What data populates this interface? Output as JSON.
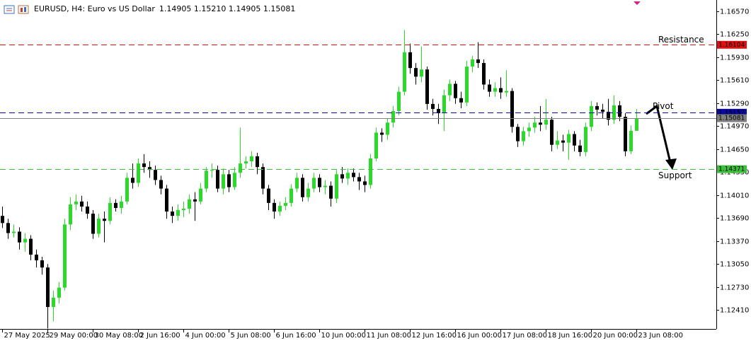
{
  "chart_data": {
    "type": "candlestick",
    "title": "EURUSD, H4: Euro vs US Dollar",
    "quote": "1.14905 1.15210 1.14905 1.15081",
    "categories": [
      "27 May 2025",
      null,
      null,
      null,
      null,
      null,
      null,
      null,
      "29 May 00:00",
      null,
      null,
      null,
      null,
      null,
      null,
      null,
      "30 May 08:00",
      null,
      null,
      null,
      null,
      null,
      null,
      null,
      "2 Jun 16:00",
      null,
      null,
      null,
      null,
      null,
      null,
      null,
      "4 Jun 00:00",
      null,
      null,
      null,
      null,
      null,
      null,
      null,
      "5 Jun 08:00",
      null,
      null,
      null,
      null,
      null,
      null,
      null,
      "6 Jun 16:00",
      null,
      null,
      null,
      null,
      null,
      null,
      null,
      "10 Jun 00:00",
      null,
      null,
      null,
      null,
      null,
      null,
      null,
      "11 Jun 08:00",
      null,
      null,
      null,
      null,
      null,
      null,
      null,
      "12 Jun 16:00",
      null,
      null,
      null,
      null,
      null,
      null,
      null,
      "16 Jun 00:00",
      null,
      null,
      null,
      null,
      null,
      null,
      null,
      "17 Jun 08:00",
      null,
      null,
      null,
      null,
      null,
      null,
      null,
      "18 Jun 16:00",
      null,
      null,
      null,
      null,
      null,
      null,
      null,
      "20 Jun 00:00",
      null,
      null,
      null,
      null,
      null,
      null,
      null,
      "23 Jun 08:00"
    ],
    "open": [
      1.1372,
      1.1362,
      1.1348,
      1.135,
      1.1335,
      1.134,
      1.1318,
      1.131,
      1.13,
      1.1245,
      1.1258,
      1.1272,
      1.136,
      1.1388,
      1.1392,
      1.1385,
      1.1375,
      1.1347,
      1.1368,
      1.1365,
      1.139,
      1.1383,
      1.1392,
      1.1425,
      1.1418,
      1.1445,
      1.144,
      1.1436,
      1.1422,
      1.141,
      1.1378,
      1.1372,
      1.138,
      1.1382,
      1.1395,
      1.1392,
      1.141,
      1.1435,
      1.1436,
      1.141,
      1.143,
      1.1412,
      1.1432,
      1.1445,
      1.1448,
      1.1455,
      1.144,
      1.141,
      1.139,
      1.1378,
      1.1386,
      1.139,
      1.141,
      1.1425,
      1.1398,
      1.141,
      1.1425,
      1.1412,
      1.1414,
      1.1396,
      1.143,
      1.1424,
      1.1432,
      1.1426,
      1.142,
      1.1415,
      1.1452,
      1.1488,
      1.1485,
      1.1502,
      1.1518,
      1.1545,
      1.16,
      1.1578,
      1.1566,
      1.1576,
      1.1528,
      1.1521,
      1.1515,
      1.154,
      1.1556,
      1.1536,
      1.153,
      1.158,
      1.159,
      1.1585,
      1.1555,
      1.1545,
      1.155,
      1.1544,
      1.1546,
      1.1496,
      1.1476,
      1.149,
      1.1495,
      1.1502,
      1.1499,
      1.1506,
      1.1471,
      1.1477,
      1.1474,
      1.1486,
      1.147,
      1.1461,
      1.1496,
      1.1525,
      1.152,
      1.1517,
      1.1506,
      1.1526,
      1.151,
      1.1462,
      1.14905
    ],
    "high": [
      1.1385,
      1.1368,
      1.136,
      1.1356,
      1.1348,
      1.1345,
      1.1325,
      1.1315,
      1.1305,
      1.1268,
      1.128,
      1.1368,
      1.1398,
      1.1402,
      1.14,
      1.1392,
      1.138,
      1.1375,
      1.1378,
      1.1398,
      1.1395,
      1.14,
      1.1432,
      1.1445,
      1.1452,
      1.1458,
      1.1448,
      1.1442,
      1.1428,
      1.1415,
      1.1385,
      1.1388,
      1.1392,
      1.1402,
      1.1405,
      1.1418,
      1.144,
      1.1445,
      1.1442,
      1.1438,
      1.1436,
      1.144,
      1.1495,
      1.1455,
      1.1462,
      1.146,
      1.1445,
      1.1415,
      1.1395,
      1.1392,
      1.1398,
      1.1416,
      1.1432,
      1.143,
      1.1418,
      1.1432,
      1.143,
      1.1422,
      1.142,
      1.1436,
      1.144,
      1.1438,
      1.1438,
      1.1432,
      1.1428,
      1.1458,
      1.1495,
      1.1494,
      1.1508,
      1.1525,
      1.1552,
      1.1631,
      1.1612,
      1.1585,
      1.1608,
      1.158,
      1.1535,
      1.1528,
      1.1548,
      1.1562,
      1.156,
      1.1545,
      1.1588,
      1.1595,
      1.1614,
      1.159,
      1.1562,
      1.1558,
      1.1565,
      1.1575,
      1.155,
      1.15,
      1.1496,
      1.1502,
      1.151,
      1.1525,
      1.1535,
      1.151,
      1.149,
      1.1485,
      1.1492,
      1.149,
      1.1478,
      1.1502,
      1.1532,
      1.153,
      1.1528,
      1.1535,
      1.154,
      1.1532,
      1.1515,
      1.1498,
      1.1521
    ],
    "low": [
      1.1355,
      1.134,
      1.1342,
      1.1325,
      1.1322,
      1.131,
      1.13,
      1.129,
      1.1215,
      1.1225,
      1.125,
      1.1268,
      1.1352,
      1.138,
      1.1378,
      1.1368,
      1.134,
      1.1342,
      1.1335,
      1.136,
      1.1378,
      1.1375,
      1.1388,
      1.141,
      1.1412,
      1.1432,
      1.1425,
      1.1415,
      1.1402,
      1.1368,
      1.1362,
      1.1365,
      1.137,
      1.1375,
      1.1365,
      1.1388,
      1.1405,
      1.1425,
      1.1405,
      1.1402,
      1.1405,
      1.1408,
      1.1425,
      1.1438,
      1.144,
      1.143,
      1.1402,
      1.138,
      1.1368,
      1.1372,
      1.138,
      1.1385,
      1.1405,
      1.1392,
      1.1392,
      1.1405,
      1.1405,
      1.1402,
      1.1385,
      1.139,
      1.1418,
      1.1415,
      1.142,
      1.1408,
      1.1405,
      1.141,
      1.1448,
      1.1475,
      1.1478,
      1.1495,
      1.1512,
      1.154,
      1.157,
      1.1555,
      1.1558,
      1.152,
      1.1512,
      1.15,
      1.149,
      1.1532,
      1.1528,
      1.1522,
      1.1525,
      1.1572,
      1.1578,
      1.1548,
      1.1538,
      1.1538,
      1.1535,
      1.1538,
      1.1488,
      1.1468,
      1.147,
      1.1482,
      1.1488,
      1.149,
      1.1492,
      1.1462,
      1.1465,
      1.1462,
      1.145,
      1.1462,
      1.1455,
      1.1455,
      1.149,
      1.1512,
      1.1508,
      1.1498,
      1.15,
      1.1504,
      1.1455,
      1.1458,
      1.14905
    ],
    "close": [
      1.1362,
      1.1348,
      1.135,
      1.1335,
      1.134,
      1.1318,
      1.131,
      1.13,
      1.1245,
      1.1258,
      1.1272,
      1.136,
      1.1388,
      1.1392,
      1.1385,
      1.1375,
      1.1347,
      1.1368,
      1.1365,
      1.139,
      1.1383,
      1.1392,
      1.1425,
      1.1418,
      1.1445,
      1.144,
      1.1436,
      1.1422,
      1.141,
      1.1378,
      1.1372,
      1.138,
      1.1382,
      1.1395,
      1.1392,
      1.141,
      1.1435,
      1.1436,
      1.141,
      1.143,
      1.1412,
      1.1432,
      1.1445,
      1.1448,
      1.1455,
      1.144,
      1.141,
      1.139,
      1.1378,
      1.1386,
      1.139,
      1.141,
      1.1425,
      1.1398,
      1.141,
      1.1425,
      1.1412,
      1.1414,
      1.1396,
      1.143,
      1.1424,
      1.1432,
      1.1426,
      1.142,
      1.1415,
      1.1452,
      1.1488,
      1.1485,
      1.1502,
      1.1518,
      1.1545,
      1.16,
      1.1578,
      1.1566,
      1.1576,
      1.1528,
      1.1521,
      1.1515,
      1.154,
      1.1556,
      1.1536,
      1.153,
      1.158,
      1.159,
      1.1585,
      1.1555,
      1.1545,
      1.155,
      1.1544,
      1.1546,
      1.1496,
      1.1476,
      1.149,
      1.1495,
      1.1502,
      1.1499,
      1.1506,
      1.1471,
      1.1477,
      1.1474,
      1.1486,
      1.147,
      1.1461,
      1.1496,
      1.1525,
      1.152,
      1.1517,
      1.1506,
      1.1526,
      1.151,
      1.1462,
      1.14905,
      1.15081
    ],
    "bull_color": "#2bd92b",
    "bear_color": "#000000",
    "ylim": [
      1.12144,
      1.16728
    ],
    "yticks": [
      {
        "value": 1.1657,
        "label": "1.16570"
      },
      {
        "value": 1.1625,
        "label": "1.16250"
      },
      {
        "value": 1.1593,
        "label": "1.15930"
      },
      {
        "value": 1.1561,
        "label": "1.15610"
      },
      {
        "value": 1.1529,
        "label": "1.15290"
      },
      {
        "value": 1.1497,
        "label": "1.14970"
      },
      {
        "value": 1.1465,
        "label": "1.14650"
      },
      {
        "value": 1.1433,
        "label": "1.14330"
      },
      {
        "value": 1.1401,
        "label": "1.14010"
      },
      {
        "value": 1.1369,
        "label": "1.13690"
      },
      {
        "value": 1.1337,
        "label": "1.13370"
      },
      {
        "value": 1.1305,
        "label": "1.13050"
      },
      {
        "value": 1.1273,
        "label": "1.12730"
      },
      {
        "value": 1.1241,
        "label": "1.12410"
      }
    ],
    "grid": false,
    "levels": [
      {
        "name": "Resistance",
        "value": 1.16104,
        "color": "#e01010"
      },
      {
        "name": "Pivot",
        "value": 1.15157,
        "color": "#0a0aa0"
      },
      {
        "name": "Support",
        "value": 1.14371,
        "color": "#3cbf3c"
      }
    ],
    "current_price": 1.15081,
    "current_color": "#808080"
  }
}
